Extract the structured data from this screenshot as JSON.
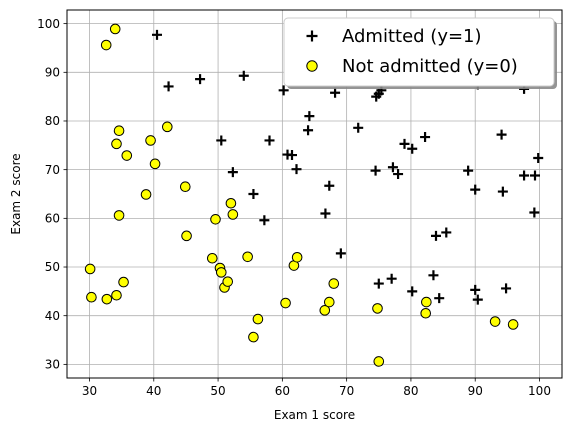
{
  "chart_data": {
    "type": "scatter",
    "title": "",
    "xlabel": "Exam 1 score",
    "ylabel": "Exam 2 score",
    "xlim": [
      26.5,
      103.5
    ],
    "ylim": [
      27.2,
      102.8
    ],
    "xticks": [
      30,
      40,
      50,
      60,
      70,
      80,
      90,
      100
    ],
    "yticks": [
      30,
      40,
      50,
      60,
      70,
      80,
      90,
      100
    ],
    "grid": true,
    "legend_position": "top-right",
    "series": [
      {
        "name": "Admitted (y=1)",
        "marker": "plus",
        "color": "#000000",
        "points": [
          [
            40.5,
            97.7
          ],
          [
            42.3,
            87.1
          ],
          [
            47.2,
            88.6
          ],
          [
            54.0,
            89.3
          ],
          [
            60.2,
            86.3
          ],
          [
            64.2,
            81.0
          ],
          [
            68.2,
            85.8
          ],
          [
            74.6,
            85.0
          ],
          [
            75.0,
            85.6
          ],
          [
            75.4,
            86.3
          ],
          [
            90.4,
            87.5
          ],
          [
            97.6,
            86.6
          ],
          [
            50.5,
            76.0
          ],
          [
            58.0,
            76.0
          ],
          [
            64.0,
            78.1
          ],
          [
            71.8,
            78.6
          ],
          [
            82.2,
            76.7
          ],
          [
            94.1,
            77.2
          ],
          [
            52.3,
            69.5
          ],
          [
            60.8,
            73.1
          ],
          [
            61.5,
            73.0
          ],
          [
            62.2,
            70.1
          ],
          [
            74.5,
            69.8
          ],
          [
            77.2,
            70.5
          ],
          [
            78.0,
            69.1
          ],
          [
            79.0,
            75.3
          ],
          [
            80.2,
            74.3
          ],
          [
            88.9,
            69.8
          ],
          [
            97.6,
            68.8
          ],
          [
            99.3,
            68.8
          ],
          [
            99.8,
            72.4
          ],
          [
            55.5,
            65.0
          ],
          [
            57.2,
            59.6
          ],
          [
            66.7,
            61.0
          ],
          [
            67.3,
            66.7
          ],
          [
            90.0,
            65.9
          ],
          [
            94.3,
            65.5
          ],
          [
            99.2,
            61.2
          ],
          [
            69.1,
            52.8
          ],
          [
            75.0,
            46.6
          ],
          [
            77.0,
            47.6
          ],
          [
            80.2,
            45.0
          ],
          [
            83.5,
            48.3
          ],
          [
            84.4,
            43.6
          ],
          [
            83.9,
            56.4
          ],
          [
            85.5,
            57.1
          ],
          [
            90.0,
            45.3
          ],
          [
            90.4,
            43.3
          ],
          [
            94.8,
            45.6
          ]
        ]
      },
      {
        "name": "Not admitted (y=0)",
        "marker": "circle",
        "color": "#ffff00",
        "edgecolor": "#000000",
        "points": [
          [
            34.0,
            98.9
          ],
          [
            32.6,
            95.6
          ],
          [
            34.6,
            78.0
          ],
          [
            34.2,
            75.3
          ],
          [
            35.8,
            72.9
          ],
          [
            39.5,
            76.0
          ],
          [
            40.2,
            71.2
          ],
          [
            42.1,
            78.8
          ],
          [
            38.8,
            64.9
          ],
          [
            34.6,
            60.6
          ],
          [
            44.9,
            66.5
          ],
          [
            45.1,
            56.4
          ],
          [
            30.1,
            49.6
          ],
          [
            30.3,
            43.8
          ],
          [
            32.7,
            43.4
          ],
          [
            34.2,
            44.2
          ],
          [
            35.3,
            46.9
          ],
          [
            49.1,
            51.8
          ],
          [
            49.6,
            59.8
          ],
          [
            50.3,
            49.8
          ],
          [
            50.5,
            48.9
          ],
          [
            51.0,
            45.8
          ],
          [
            51.5,
            47.0
          ],
          [
            52.0,
            63.1
          ],
          [
            52.3,
            60.8
          ],
          [
            54.6,
            52.1
          ],
          [
            55.5,
            35.6
          ],
          [
            56.2,
            39.3
          ],
          [
            60.5,
            42.6
          ],
          [
            61.8,
            50.3
          ],
          [
            62.3,
            52.0
          ],
          [
            66.6,
            41.1
          ],
          [
            67.3,
            42.8
          ],
          [
            68.0,
            46.6
          ],
          [
            74.8,
            41.5
          ],
          [
            75.0,
            30.6
          ],
          [
            82.4,
            42.8
          ],
          [
            82.3,
            40.5
          ],
          [
            93.1,
            38.8
          ],
          [
            95.9,
            38.2
          ]
        ]
      }
    ]
  }
}
